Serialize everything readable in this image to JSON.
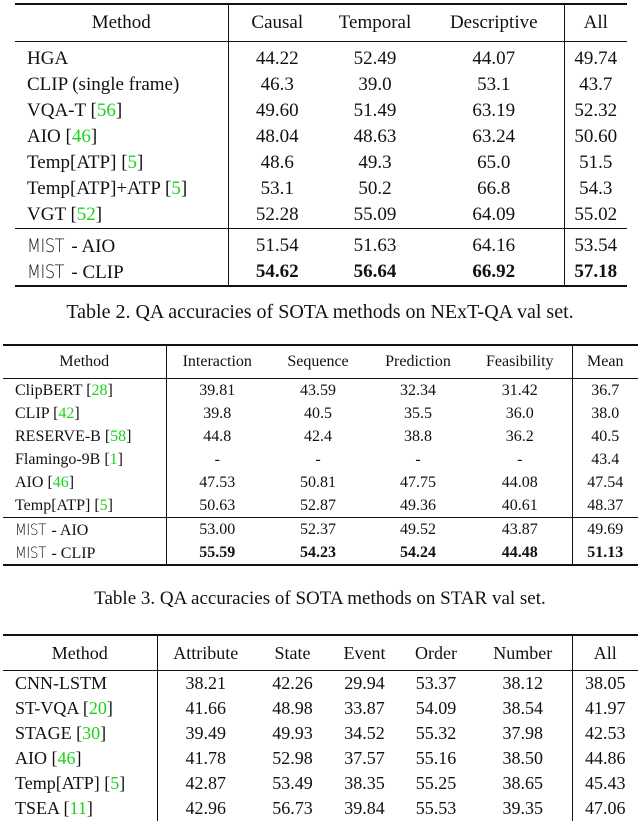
{
  "tables": [
    {
      "columns": [
        "Method",
        "Causal",
        "Temporal",
        "Descriptive",
        "All"
      ],
      "groups": [
        [
          {
            "method": "HGA",
            "cite": "",
            "values": [
              "44.22",
              "52.49",
              "44.07",
              "49.74"
            ]
          },
          {
            "method": "CLIP (single frame)",
            "cite": "",
            "values": [
              "46.3",
              "39.0",
              "53.1",
              "43.7"
            ]
          },
          {
            "method": "VQA-T",
            "cite": "56",
            "values": [
              "49.60",
              "51.49",
              "63.19",
              "52.32"
            ]
          },
          {
            "method": "AIO",
            "cite": "46",
            "values": [
              "48.04",
              "48.63",
              "63.24",
              "50.60"
            ]
          },
          {
            "method": "Temp[ATP]",
            "cite": "5",
            "values": [
              "48.6",
              "49.3",
              "65.0",
              "51.5"
            ]
          },
          {
            "method": "Temp[ATP]+ATP",
            "cite": "5",
            "values": [
              "53.1",
              "50.2",
              "66.8",
              "54.3"
            ]
          },
          {
            "method": "VGT",
            "cite": "52",
            "values": [
              "52.28",
              "55.09",
              "64.09",
              "55.02"
            ]
          }
        ],
        [
          {
            "logo": "MIST",
            "method": "- AIO",
            "cite": "",
            "values": [
              "51.54",
              "51.63",
              "64.16",
              "53.54"
            ]
          },
          {
            "logo": "MIST",
            "method": "- CLIP",
            "cite": "",
            "bold": true,
            "values": [
              "54.62",
              "56.64",
              "66.92",
              "57.18"
            ]
          }
        ]
      ],
      "caption": "Table 2. QA accuracies of SOTA methods on NExT-QA val set."
    },
    {
      "columns": [
        "Method",
        "Interaction",
        "Sequence",
        "Prediction",
        "Feasibility",
        "Mean"
      ],
      "groups": [
        [
          {
            "method": "ClipBERT",
            "cite": "28",
            "values": [
              "39.81",
              "43.59",
              "32.34",
              "31.42",
              "36.7"
            ]
          },
          {
            "method": "CLIP",
            "cite": "42",
            "values": [
              "39.8",
              "40.5",
              "35.5",
              "36.0",
              "38.0"
            ]
          },
          {
            "method": "RESERVE-B",
            "cite": "58",
            "values": [
              "44.8",
              "42.4",
              "38.8",
              "36.2",
              "40.5"
            ]
          },
          {
            "method": "Flamingo-9B",
            "cite": "1",
            "values": [
              "-",
              "-",
              "-",
              "-",
              "43.4"
            ]
          },
          {
            "method": "AIO",
            "cite": "46",
            "values": [
              "47.53",
              "50.81",
              "47.75",
              "44.08",
              "47.54"
            ]
          },
          {
            "method": "Temp[ATP]",
            "cite": "5",
            "values": [
              "50.63",
              "52.87",
              "49.36",
              "40.61",
              "48.37"
            ]
          }
        ],
        [
          {
            "logo": "MIST",
            "method": "- AIO",
            "cite": "",
            "values": [
              "53.00",
              "52.37",
              "49.52",
              "43.87",
              "49.69"
            ]
          },
          {
            "logo": "MIST",
            "method": "- CLIP",
            "cite": "",
            "bold": true,
            "values": [
              "55.59",
              "54.23",
              "54.24",
              "44.48",
              "51.13"
            ]
          }
        ]
      ],
      "caption": "Table 3. QA accuracies of SOTA methods on STAR val set."
    },
    {
      "columns": [
        "Method",
        "Attribute",
        "State",
        "Event",
        "Order",
        "Number",
        "All"
      ],
      "groups": [
        [
          {
            "method": "CNN-LSTM",
            "cite": "",
            "values": [
              "38.21",
              "42.26",
              "29.94",
              "53.37",
              "38.12",
              "38.05"
            ]
          },
          {
            "method": "ST-VQA",
            "cite": "20",
            "values": [
              "41.66",
              "48.98",
              "33.87",
              "54.09",
              "38.54",
              "41.97"
            ]
          },
          {
            "method": "STAGE",
            "cite": "30",
            "values": [
              "39.49",
              "49.93",
              "34.52",
              "55.32",
              "37.98",
              "42.53"
            ]
          },
          {
            "method": "AIO",
            "cite": "46",
            "values": [
              "41.78",
              "52.98",
              "37.57",
              "55.16",
              "38.50",
              "44.86"
            ]
          },
          {
            "method": "Temp[ATP]",
            "cite": "5",
            "values": [
              "42.87",
              "53.49",
              "38.35",
              "55.25",
              "38.65",
              "45.43"
            ]
          },
          {
            "method": "TSEA",
            "cite": "11",
            "values": [
              "42.96",
              "56.73",
              "39.84",
              "55.53",
              "39.35",
              "47.06"
            ]
          }
        ]
      ],
      "caption": ""
    }
  ],
  "colors": {
    "citation": "#19d419",
    "text": "#111111"
  }
}
